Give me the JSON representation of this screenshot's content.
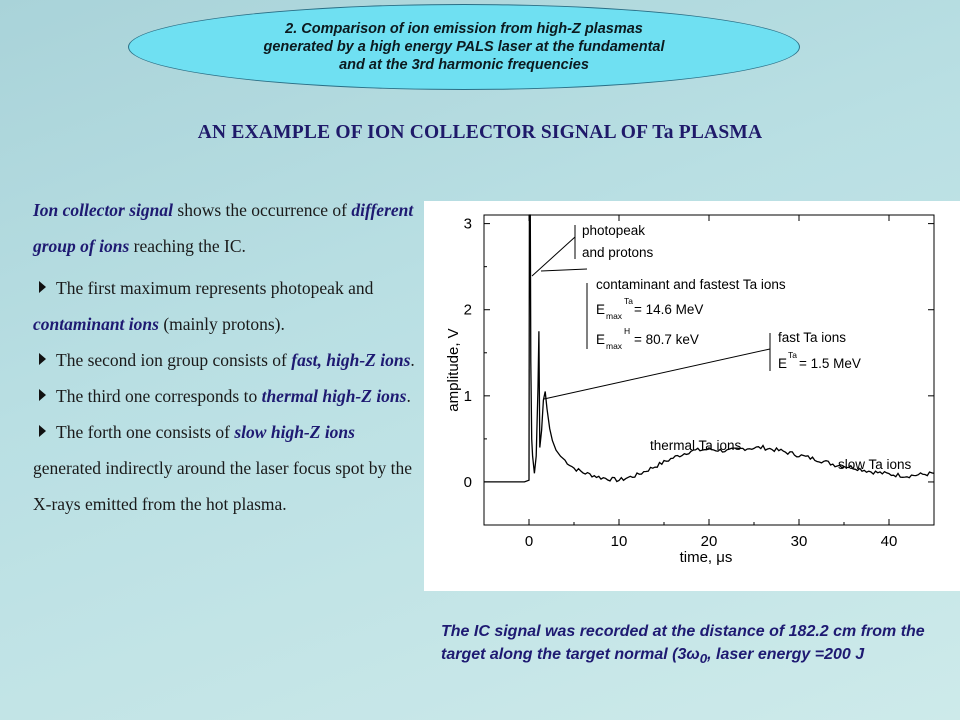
{
  "banner": {
    "line1": "2. Comparison of ion emission from high-Z plasmas",
    "line2": "generated by a high energy PALS laser at the fundamental",
    "line3": "and at the 3rd harmonic frequencies"
  },
  "title": "AN EXAMPLE OF ION COLLECTOR SIGNAL OF Ta PLASMA",
  "left": {
    "intro_hl1": "Ion collector signal",
    "intro_t1": " shows the occurrence of ",
    "intro_hl2": "different group of ions",
    "intro_t2": " reaching the IC.",
    "b1_t1": "The first maximum represents photopeak and ",
    "b1_hl": "contaminant ions",
    "b1_t2": " (mainly protons).",
    "b2_t1": "The second ion group consists of ",
    "b2_hl": "fast, high-Z ions",
    "b2_t2": ".",
    "b3_t1": "The third one corresponds to ",
    "b3_hl": "thermal high-Z ions",
    "b3_t2": ".",
    "b4_t1": "The forth one consists of ",
    "b4_hl": "slow high-Z ions",
    "b4_t2": " generated  indirectly around the laser focus spot by  the X-rays emitted from the hot plasma."
  },
  "caption": {
    "t1": "The IC signal was recorded at the distance of 182.2 cm from the target along the target normal (3",
    "omega": "ω",
    "sub": "0",
    "t2": ", laser energy =200 J"
  },
  "chart_data": {
    "type": "line",
    "xlabel": "time, μs",
    "ylabel": "amplitude, V",
    "xlim": [
      -5,
      45
    ],
    "ylim": [
      -0.5,
      3.1
    ],
    "x_ticks": [
      0,
      10,
      20,
      30,
      40
    ],
    "y_ticks": [
      0,
      1,
      2,
      3
    ],
    "grid": false,
    "series": [
      {
        "x": [
          -5,
          -0.5,
          0,
          0.05,
          0.15,
          0.2,
          0.3,
          0.4,
          0.6,
          0.8,
          1.0,
          1.1,
          1.2,
          1.4,
          1.6,
          1.8,
          2.0,
          2.3,
          2.6,
          3,
          3.5,
          4,
          5,
          6,
          8,
          10,
          12,
          14,
          16,
          18,
          20,
          22,
          24,
          26,
          28,
          30,
          32,
          34,
          36,
          38,
          40,
          42,
          45
        ],
        "y": [
          0,
          0,
          0.02,
          3.1,
          3.1,
          1.4,
          0.5,
          0.3,
          0.1,
          0.3,
          1.1,
          1.75,
          0.4,
          0.6,
          0.95,
          1.05,
          0.85,
          0.62,
          0.48,
          0.37,
          0.3,
          0.25,
          0.16,
          0.11,
          0.05,
          0.02,
          0.08,
          0.18,
          0.28,
          0.36,
          0.38,
          0.36,
          0.39,
          0.4,
          0.36,
          0.31,
          0.26,
          0.2,
          0.17,
          0.12,
          0.09,
          0.07,
          0.1
        ]
      }
    ],
    "annotations": {
      "photopeak_l1": "photopeak",
      "photopeak_l2": "and protons",
      "cont_title": "contaminant and fastest Ta ions",
      "cont_e1_pre": "E",
      "cont_e1_sub": "max",
      "cont_e1_sup": "Ta",
      "cont_e1_val": " = 14.6 MeV",
      "cont_e2_pre": "E",
      "cont_e2_sub": "max",
      "cont_e2_sup": "H",
      "cont_e2_val": " = 80.7 keV",
      "fast_title": "fast Ta ions",
      "fast_e_pre": "E",
      "fast_e_sup": "Ta",
      "fast_e_val": " = 1.5 MeV",
      "thermal": "thermal Ta ions",
      "slow": "slow Ta ions"
    }
  }
}
